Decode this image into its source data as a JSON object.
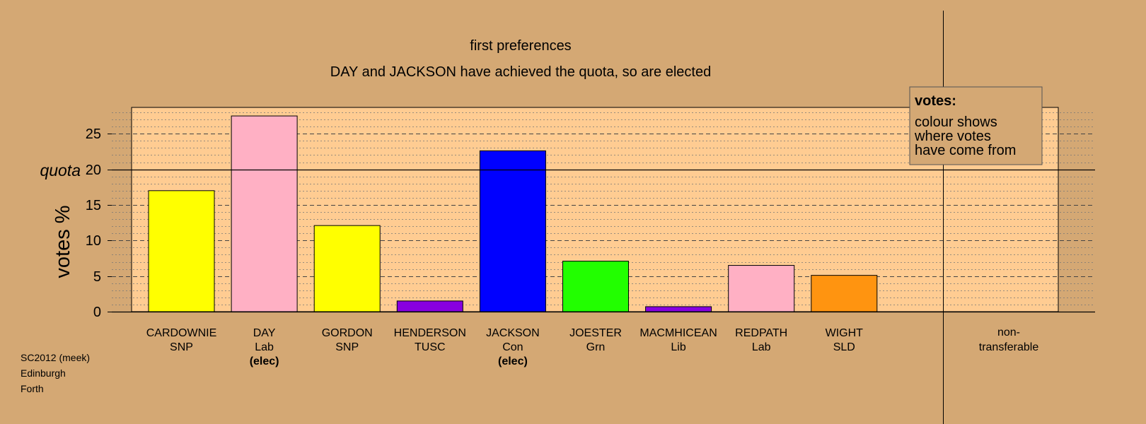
{
  "colors": {
    "page_background": "#d4a874",
    "plot_background": "#ffcc92",
    "nontransferable_background": "#d4a874"
  },
  "chart_data": {
    "type": "bar",
    "title": "first preferences",
    "subtitle": "DAY and JACKSON have achieved the quota, so are elected",
    "ylabel": "votes %",
    "ylim": [
      0,
      28.5
    ],
    "yticks": [
      0,
      5,
      10,
      15,
      20,
      25
    ],
    "grid": "dashed at 5s, dotted at 1s",
    "quota": {
      "value": 20,
      "label": "quota"
    },
    "candidates": [
      {
        "name": "CARDOWNIE",
        "party": "SNP",
        "value": 17.0,
        "color": "#ffff00",
        "elected": false
      },
      {
        "name": "DAY",
        "party": "Lab",
        "value": 27.5,
        "color": "#ffb0c4",
        "elected": true
      },
      {
        "name": "GORDON",
        "party": "SNP",
        "value": 12.1,
        "color": "#ffff00",
        "elected": false
      },
      {
        "name": "HENDERSON",
        "party": "TUSC",
        "value": 1.5,
        "color": "#8800e0",
        "elected": false
      },
      {
        "name": "JACKSON",
        "party": "Con",
        "value": 22.6,
        "color": "#0000ff",
        "elected": true
      },
      {
        "name": "JOESTER",
        "party": "Grn",
        "value": 7.1,
        "color": "#22ff00",
        "elected": false
      },
      {
        "name": "MACMHICEAN",
        "party": "Lib",
        "value": 0.7,
        "color": "#8800e0",
        "elected": false
      },
      {
        "name": "REDPATH",
        "party": "Lab",
        "value": 6.5,
        "color": "#ffb0c4",
        "elected": false
      },
      {
        "name": "WIGHT",
        "party": "SLD",
        "value": 5.1,
        "color": "#ff9410",
        "elected": false
      }
    ],
    "elected_label": "(elec)",
    "nontransferable": {
      "line1": "non-",
      "line2": "transferable",
      "value": 0
    },
    "legend": {
      "title": "votes:",
      "lines": [
        "colour shows",
        "where votes",
        "have come from"
      ],
      "placement": "top-right"
    }
  },
  "footer": {
    "lines": [
      "SC2012 (meek)",
      "Edinburgh",
      "Forth"
    ]
  }
}
